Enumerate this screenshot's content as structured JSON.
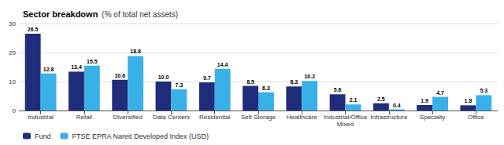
{
  "chart_data": {
    "type": "bar",
    "title": "Sector breakdown",
    "subtitle": "(% of total net assets)",
    "categories": [
      "Industrial",
      "Retail",
      "Diversified",
      "Data Centers",
      "Residential",
      "Self Storage",
      "Healthcare",
      "Industrial/Office\nMixed",
      "Infrastructure",
      "Specialty",
      "Office"
    ],
    "series": [
      {
        "name": "Fund",
        "color": "#1f2d7b",
        "values": [
          26.5,
          13.4,
          10.6,
          10.0,
          9.7,
          8.5,
          8.3,
          5.6,
          2.5,
          1.9,
          1.8
        ],
        "value_labels": [
          "26.5",
          "13.4",
          "10.6",
          "10.0",
          "9.7",
          "8.5",
          "8.3",
          "5.6",
          "2.5",
          "1.9",
          "1.8"
        ]
      },
      {
        "name": "FTSE EPRA Nareit Developed Index (USD)",
        "color": "#3ab0e8",
        "values": [
          12.8,
          15.5,
          18.8,
          7.3,
          14.4,
          6.3,
          10.2,
          2.1,
          0.4,
          4.7,
          5.3
        ]
      }
    ],
    "ylim": [
      0,
      30
    ],
    "yticks": [
      0,
      10,
      20,
      30
    ],
    "grid": true,
    "legend": "bottom left",
    "data_labels": true
  }
}
